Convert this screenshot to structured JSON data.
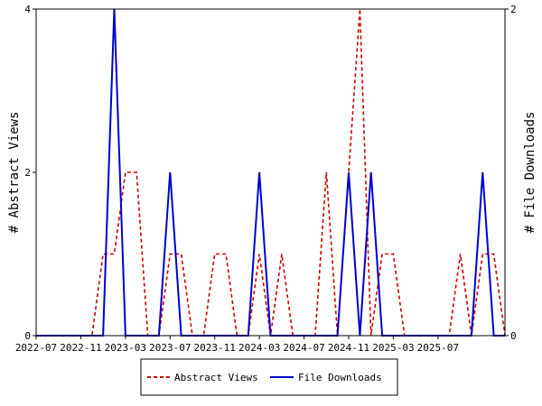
{
  "chart_data": {
    "type": "line",
    "title": "",
    "xlabel": "",
    "ylabel_left": "# Abstract Views",
    "ylabel_right": "# File Downloads",
    "x_start": "2022-07",
    "x_tick_labels": [
      "2022-07",
      "2022-11",
      "2023-03",
      "2023-07",
      "2023-11",
      "2024-03",
      "2024-07",
      "2024-11",
      "2025-03",
      "2025-07"
    ],
    "y_left_ticks": [
      "0",
      "2",
      "4"
    ],
    "y_right_ticks": [
      "0",
      "2"
    ],
    "ylim_left": [
      0,
      4
    ],
    "ylim_right": [
      0,
      2
    ],
    "grid": false,
    "legend_position": "bottom-center",
    "series": [
      {
        "name": "Abstract Views",
        "axis": "left",
        "color": "#cc0000",
        "style": "dashed",
        "values": [
          0,
          0,
          0,
          0,
          0,
          0,
          1,
          1,
          2,
          2,
          0,
          0,
          1,
          1,
          0,
          0,
          1,
          1,
          0,
          0,
          1,
          0,
          1,
          0,
          0,
          0,
          2,
          0,
          2,
          4,
          0,
          1,
          1,
          0,
          0,
          0,
          0,
          0,
          1,
          0,
          1,
          1,
          0
        ]
      },
      {
        "name": "File Downloads",
        "axis": "right",
        "color": "#0000cc",
        "style": "solid",
        "values": [
          0,
          0,
          0,
          0,
          0,
          0,
          0,
          2,
          0,
          0,
          0,
          0,
          1,
          0,
          0,
          0,
          0,
          0,
          0,
          0,
          1,
          0,
          0,
          0,
          0,
          0,
          0,
          0,
          1,
          0,
          1,
          0,
          0,
          0,
          0,
          0,
          0,
          0,
          0,
          0,
          1,
          0,
          0
        ]
      }
    ]
  }
}
